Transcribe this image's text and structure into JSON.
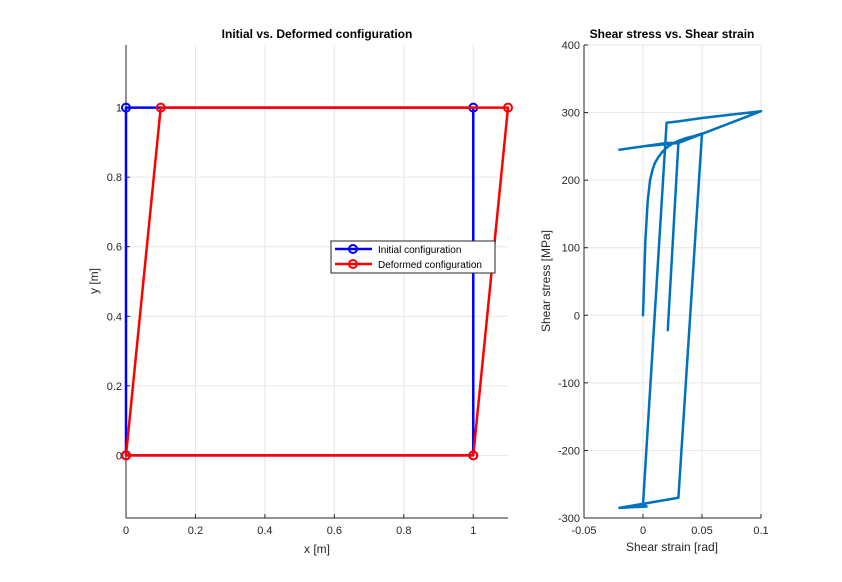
{
  "chart_data": [
    {
      "type": "line",
      "title": "Initial vs. Deformed configuration",
      "xlabel": "x [m]",
      "ylabel": "y [m]",
      "xlim": [
        0,
        1.1
      ],
      "ylim": [
        -0.18,
        1.18
      ],
      "xticks": [
        0,
        0.2,
        0.4,
        0.6,
        0.8,
        1
      ],
      "xtick_labels": [
        "0",
        "0.2",
        "0.4",
        "0.6",
        "0.8",
        "1"
      ],
      "yticks": [
        0,
        0.2,
        0.4,
        0.6,
        0.8,
        1
      ],
      "ytick_labels": [
        "0",
        "0.2",
        "0.4",
        "0.6",
        "0.8",
        "1"
      ],
      "grid": true,
      "legend_position": "center-right",
      "series": [
        {
          "name": "Initial configuration",
          "color": "#0000ff",
          "marker": "circle",
          "x": [
            0,
            1,
            1,
            0,
            0
          ],
          "y": [
            0,
            0,
            1,
            1,
            0
          ]
        },
        {
          "name": "Deformed configuration",
          "color": "#ff0000",
          "marker": "circle",
          "x": [
            0,
            1,
            1.1,
            0.1,
            0
          ],
          "y": [
            0,
            0,
            1,
            1,
            0
          ]
        }
      ]
    },
    {
      "type": "line",
      "title": "Shear stress vs. Shear strain",
      "xlabel": "Shear strain [rad]",
      "ylabel": "Shear stress [MPa]",
      "xlim": [
        -0.05,
        0.1
      ],
      "ylim": [
        -300,
        400
      ],
      "xticks": [
        -0.05,
        0,
        0.05,
        0.1
      ],
      "xtick_labels": [
        "-0.05",
        "0",
        "0.05",
        "0.1"
      ],
      "yticks": [
        -300,
        -200,
        -100,
        0,
        100,
        200,
        300,
        400
      ],
      "ytick_labels": [
        "-300",
        "-200",
        "-100",
        "0",
        "100",
        "200",
        "300",
        "400"
      ],
      "grid": true,
      "series": [
        {
          "color": "#0072bd",
          "x": [
            0,
            0.002,
            0.004,
            0.006,
            0.008,
            0.01,
            0.013,
            0.016,
            0.02,
            0.025,
            0.03,
            0.036,
            0.043,
            0.05,
            0.03,
            -0.02,
            0.003,
            0.0,
            0.02,
            0.03,
            0.05,
            0.07,
            0.1,
            0.03,
            0.0,
            -0.02,
            0.02,
            0.03,
            0.021
          ],
          "y": [
            0,
            110,
            170,
            200,
            215,
            225,
            234,
            241,
            248,
            254,
            258,
            262,
            265,
            269,
            -270,
            -285,
            -283,
            -280,
            285,
            287,
            292,
            296,
            302,
            255,
            250,
            245,
            255,
            255,
            -22
          ]
        }
      ]
    }
  ]
}
